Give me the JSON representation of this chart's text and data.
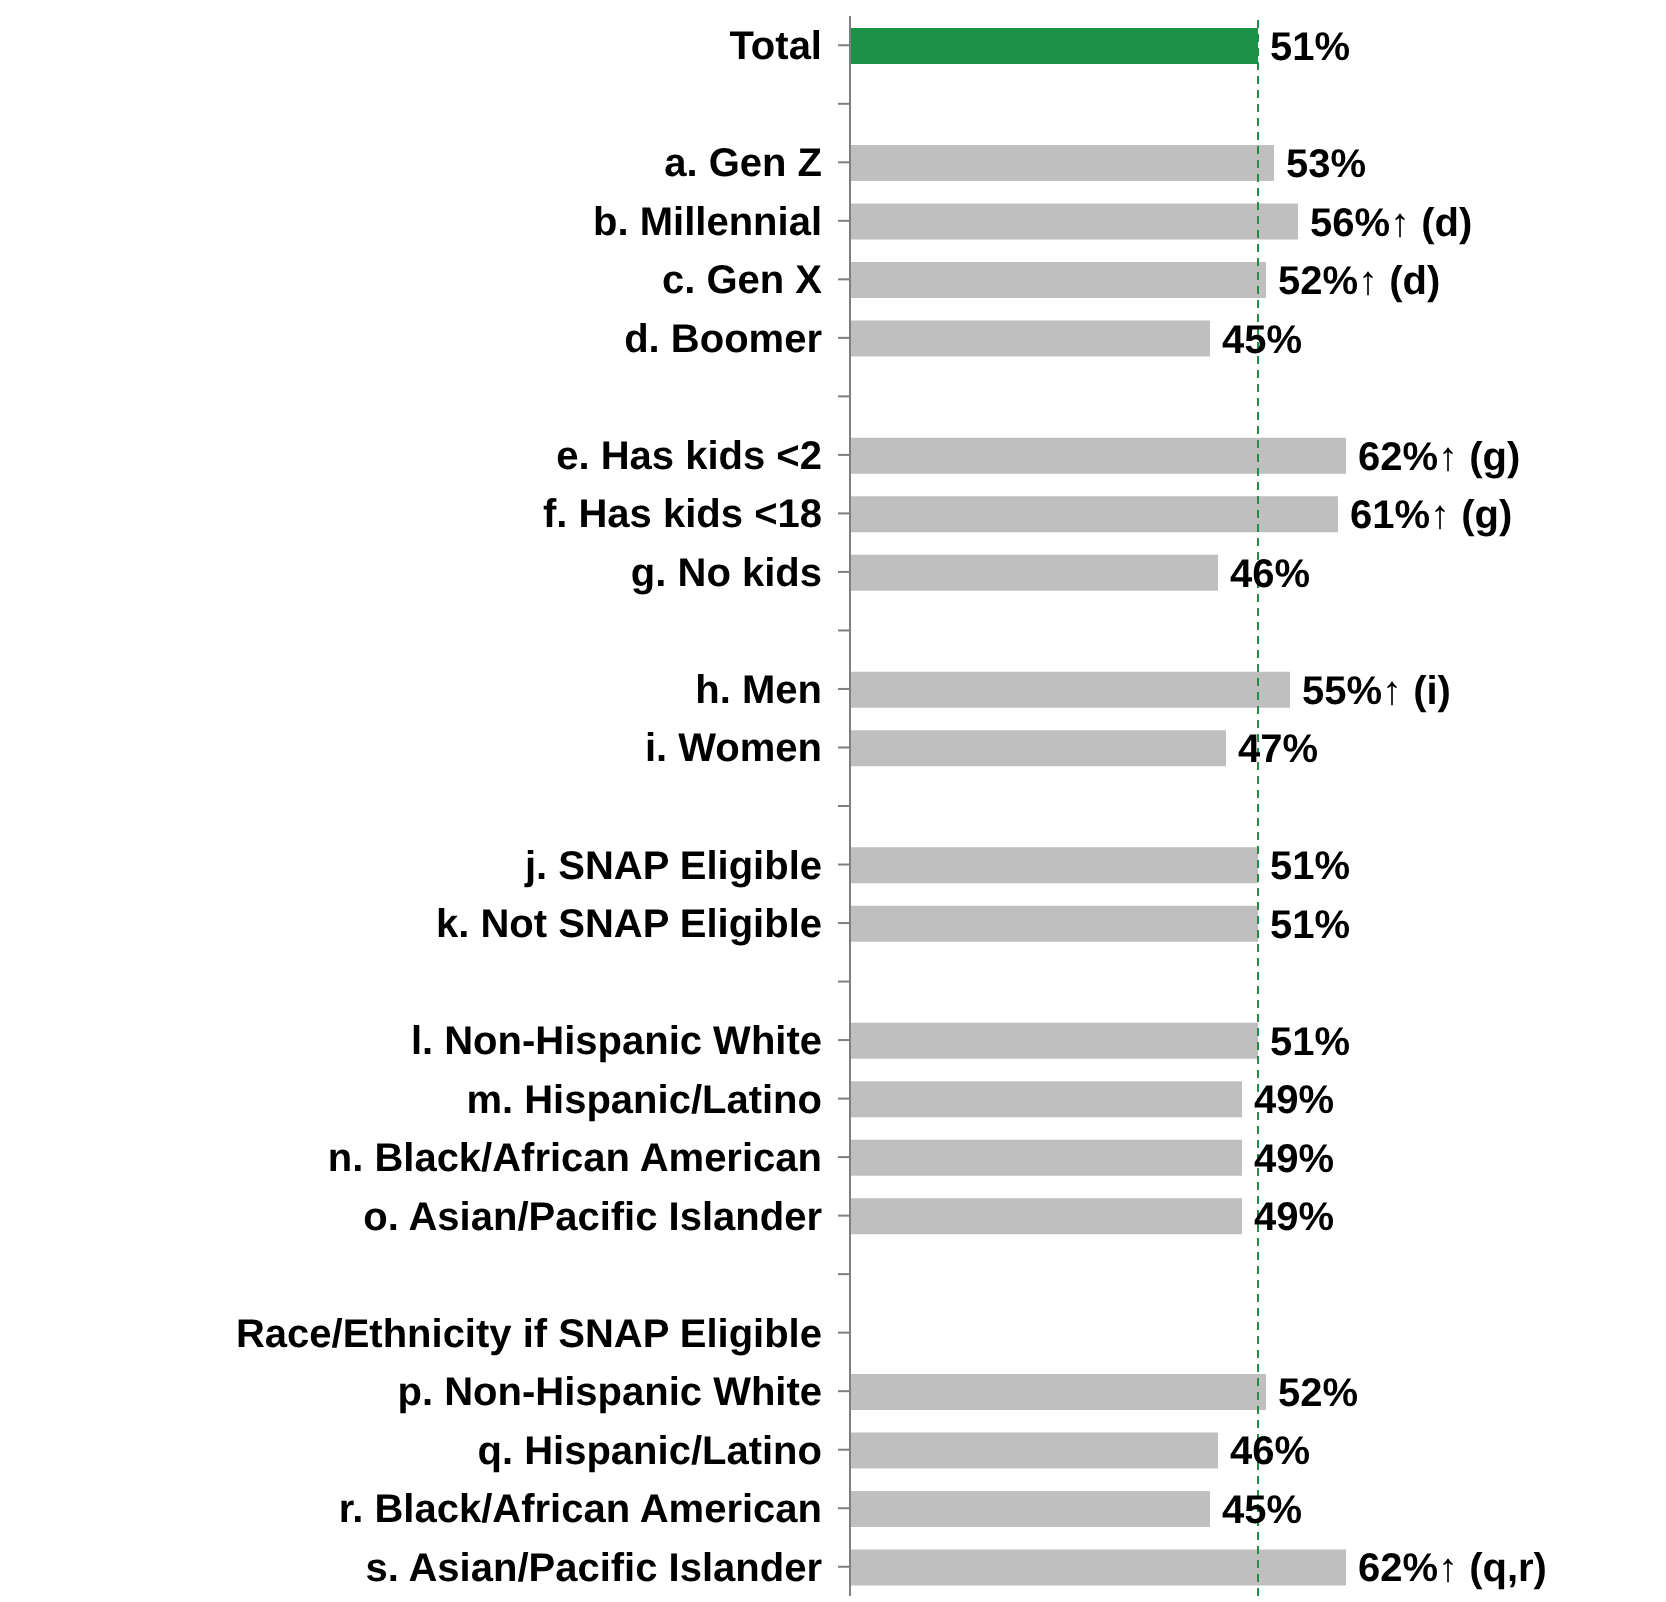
{
  "chart_data": {
    "type": "bar",
    "orientation": "horizontal",
    "tick_labels": "y",
    "categories": [
      "Total",
      null,
      "a. Gen Z",
      "b. Millennial",
      "c. Gen X",
      "d. Boomer",
      null,
      "e. Has kids <2",
      "f. Has kids <18",
      "g. No kids",
      null,
      "h. Men",
      "i. Women",
      null,
      "j. SNAP Eligible",
      "k. Not SNAP Eligible",
      null,
      "l. Non-Hispanic White",
      "m. Hispanic/Latino",
      "n. Black/African American",
      "o. Asian/Pacific Islander",
      null,
      "Race/Ethnicity if SNAP Eligible",
      "p. Non-Hispanic White",
      "q. Hispanic/Latino",
      "r. Black/African American",
      "s. Asian/Pacific Islander"
    ],
    "values": [
      51,
      null,
      53,
      56,
      52,
      45,
      null,
      62,
      61,
      46,
      null,
      55,
      47,
      null,
      51,
      51,
      null,
      51,
      49,
      49,
      49,
      null,
      null,
      52,
      46,
      45,
      62
    ],
    "colors": [
      "#1e9148",
      null,
      "#bfbfbf",
      "#bfbfbf",
      "#bfbfbf",
      "#bfbfbf",
      null,
      "#bfbfbf",
      "#bfbfbf",
      "#bfbfbf",
      null,
      "#bfbfbf",
      "#bfbfbf",
      null,
      "#bfbfbf",
      "#bfbfbf",
      null,
      "#bfbfbf",
      "#bfbfbf",
      "#bfbfbf",
      "#bfbfbf",
      null,
      null,
      "#bfbfbf",
      "#bfbfbf",
      "#bfbfbf",
      "#bfbfbf"
    ],
    "value_labels": [
      "51%",
      null,
      "53%",
      "56%↑ (d)",
      "52%↑ (d)",
      "45%",
      null,
      "62%↑ (g)",
      "61%↑ (g)",
      "46%",
      null,
      "55%↑ (i)",
      "47%",
      null,
      "51%",
      "51%",
      null,
      "51%",
      "49%",
      "49%",
      "49%",
      null,
      null,
      "52%",
      "46%",
      "45%",
      "62%↑ (q,r)"
    ],
    "ref_lines": [
      {
        "axis": "x",
        "value": 51,
        "color": "#1e9148",
        "line_style": "dashed"
      }
    ]
  }
}
